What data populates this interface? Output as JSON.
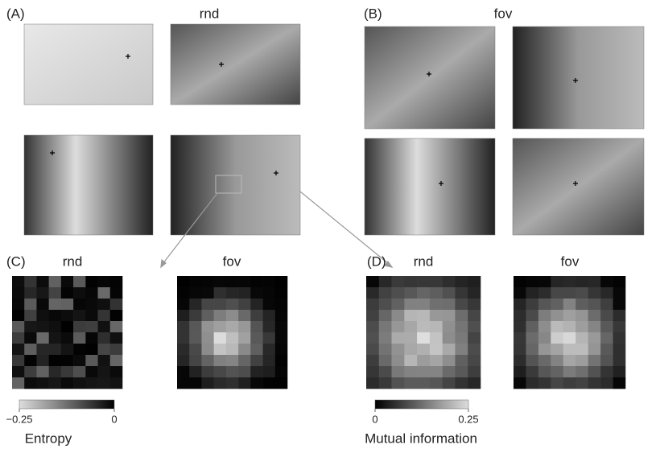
{
  "panels": [
    {
      "label": "(A)",
      "title": "rnd"
    },
    {
      "label": "(B)",
      "title": "fov"
    },
    {
      "label": "(C)",
      "maps": [
        "rnd",
        "fov"
      ]
    },
    {
      "label": "(D)",
      "maps": [
        "rnd",
        "fov"
      ]
    }
  ],
  "colorbars": [
    {
      "label": "Entropy",
      "lim": [
        -0.25,
        0
      ],
      "ticks": [
        {
          "value": -0.25,
          "label": "−0.25"
        },
        0
      ]
    },
    {
      "label": "Mutual information",
      "lim": [
        0,
        0.25
      ],
      "ticks": [
        0,
        0.25
      ]
    }
  ]
}
